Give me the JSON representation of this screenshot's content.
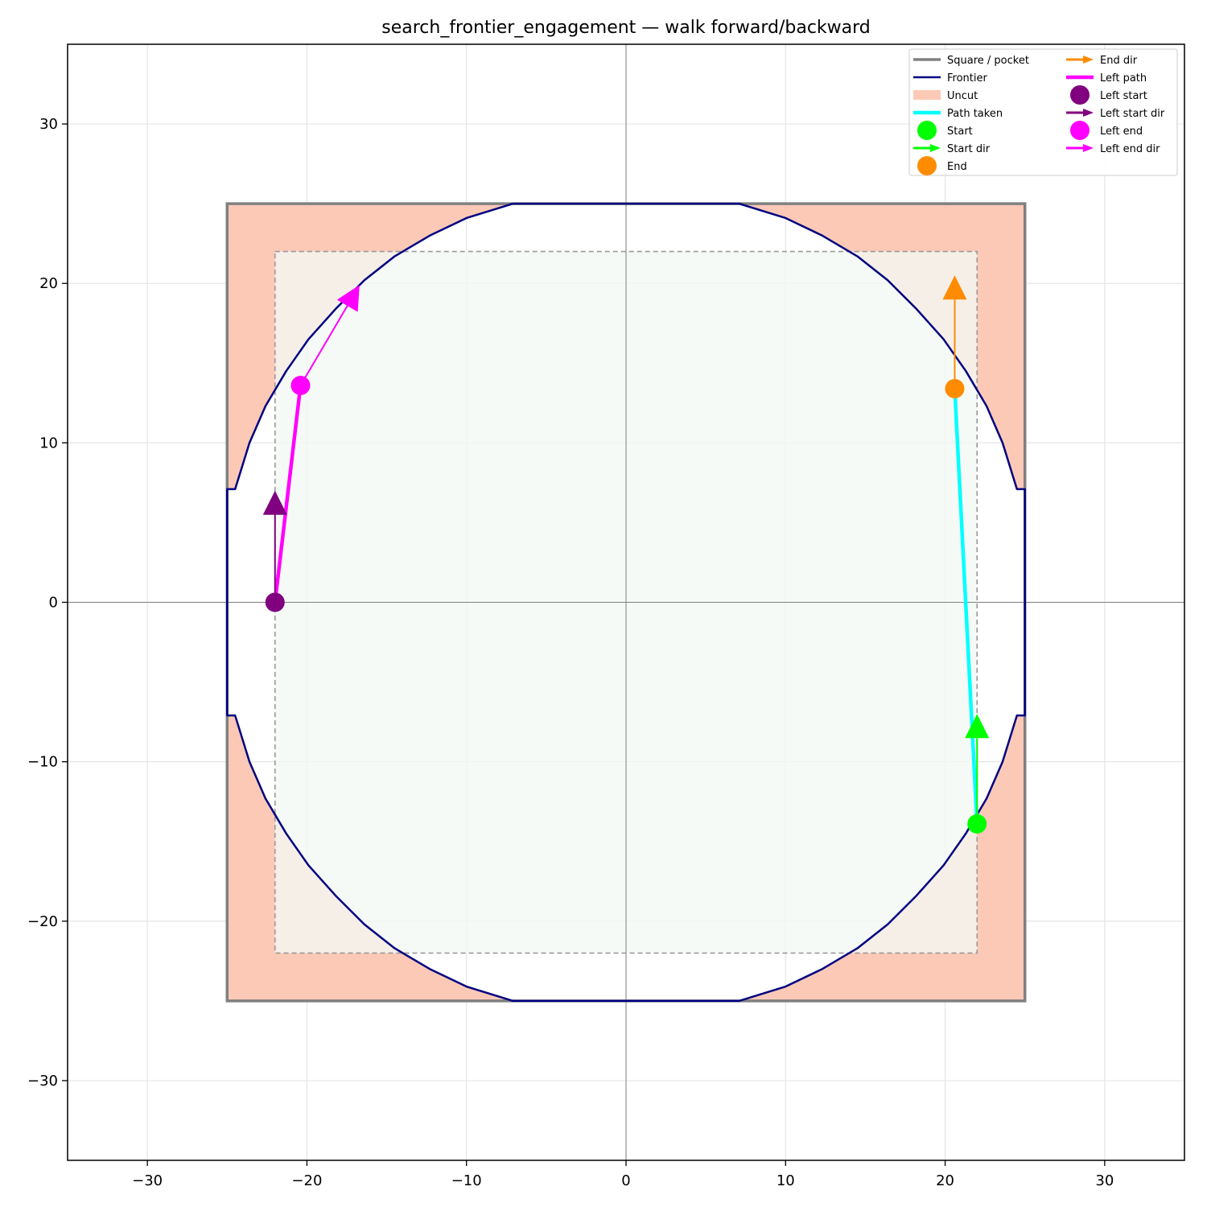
{
  "chart_data": {
    "type": "line",
    "title": "search_frontier_engagement — walk forward/backward",
    "xlabel": "",
    "ylabel": "",
    "xlim": [
      -35,
      35
    ],
    "ylim": [
      -35,
      35
    ],
    "x_ticks": [
      -30,
      -20,
      -10,
      0,
      10,
      20,
      30
    ],
    "y_ticks": [
      -30,
      -20,
      -10,
      0,
      10,
      20,
      30
    ],
    "grid": true,
    "legend_placement": "top-right",
    "square_pocket": {
      "xmin": -25,
      "xmax": 25,
      "ymin": -25,
      "ymax": 25
    },
    "inner_dashed_box": {
      "xmin": -22,
      "xmax": 22,
      "ymin": -22,
      "ymax": 22
    },
    "frontier": [
      [
        -7.1,
        25
      ],
      [
        7.1,
        25
      ],
      [
        10,
        24.1
      ],
      [
        12.3,
        23
      ],
      [
        14.5,
        21.7
      ],
      [
        16.4,
        20.2
      ],
      [
        18.2,
        18.4
      ],
      [
        19.9,
        16.5
      ],
      [
        21.3,
        14.5
      ],
      [
        22.6,
        12.3
      ],
      [
        23.6,
        10
      ],
      [
        24.5,
        7.1
      ],
      [
        25,
        7.1
      ],
      [
        25,
        -7.1
      ],
      [
        24.5,
        -7.1
      ],
      [
        23.6,
        -10
      ],
      [
        22.6,
        -12.3
      ],
      [
        21.3,
        -14.5
      ],
      [
        19.9,
        -16.5
      ],
      [
        18.2,
        -18.4
      ],
      [
        16.4,
        -20.2
      ],
      [
        14.5,
        -21.7
      ],
      [
        12.3,
        -23
      ],
      [
        10,
        -24.1
      ],
      [
        7.1,
        -25
      ],
      [
        -7.1,
        -25
      ],
      [
        -10,
        -24.1
      ],
      [
        -12.3,
        -23
      ],
      [
        -14.5,
        -21.7
      ],
      [
        -16.4,
        -20.2
      ],
      [
        -18.2,
        -18.4
      ],
      [
        -19.9,
        -16.5
      ],
      [
        -21.3,
        -14.5
      ],
      [
        -22.6,
        -12.3
      ],
      [
        -23.6,
        -10
      ],
      [
        -24.5,
        -7.1
      ],
      [
        -25,
        -7.1
      ],
      [
        -25,
        7.1
      ],
      [
        -24.5,
        7.1
      ],
      [
        -23.6,
        10
      ],
      [
        -22.6,
        12.3
      ],
      [
        -21.3,
        14.5
      ],
      [
        -19.9,
        16.5
      ],
      [
        -18.2,
        18.4
      ],
      [
        -16.4,
        20.2
      ],
      [
        -14.5,
        21.7
      ],
      [
        -12.3,
        23
      ],
      [
        -10,
        24.1
      ],
      [
        -7.1,
        25
      ]
    ],
    "path_taken": [
      [
        22,
        -13.9
      ],
      [
        20.6,
        13.4
      ]
    ],
    "start": [
      22,
      -13.9
    ],
    "start_dir": [
      [
        22,
        -13.9
      ],
      [
        22,
        -7
      ]
    ],
    "end": [
      20.6,
      13.4
    ],
    "end_dir": [
      [
        20.6,
        13.4
      ],
      [
        20.6,
        20.5
      ]
    ],
    "left_path": [
      [
        -22,
        0
      ],
      [
        -20.4,
        13.6
      ]
    ],
    "left_start": [
      -22,
      0
    ],
    "left_start_dir": [
      [
        -22,
        0
      ],
      [
        -22,
        7
      ]
    ],
    "left_end": [
      -20.4,
      13.6
    ],
    "left_end_dir": [
      [
        -20.4,
        13.6
      ],
      [
        -16.7,
        19.9
      ]
    ],
    "colors": {
      "square": "#808080",
      "frontier": "#000080",
      "uncut": "#fcc9b7",
      "inner_fill": "#f3f9f4",
      "path_taken": "#00ffff",
      "start": "#00ff00",
      "end": "#ff8c00",
      "left_path": "#ff00ff",
      "left_start": "#800080",
      "left_end": "#ff00ff"
    },
    "legend": [
      {
        "key": "square",
        "label": "Square / pocket"
      },
      {
        "key": "frontier",
        "label": "Frontier"
      },
      {
        "key": "uncut",
        "label": "Uncut"
      },
      {
        "key": "path_taken",
        "label": "Path taken"
      },
      {
        "key": "start",
        "label": "Start"
      },
      {
        "key": "start_dir",
        "label": "Start dir"
      },
      {
        "key": "end",
        "label": "End"
      },
      {
        "key": "end_dir",
        "label": "End dir"
      },
      {
        "key": "left_path",
        "label": "Left path"
      },
      {
        "key": "left_start",
        "label": "Left start"
      },
      {
        "key": "left_start_dir",
        "label": "Left start dir"
      },
      {
        "key": "left_end",
        "label": "Left end"
      },
      {
        "key": "left_end_dir",
        "label": "Left end dir"
      }
    ]
  }
}
